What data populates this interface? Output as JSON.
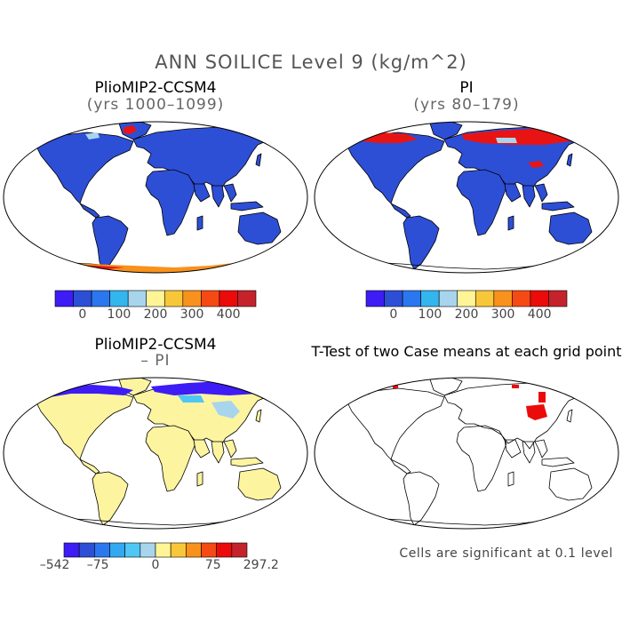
{
  "figure": {
    "title": "ANN SOILICE Level 9 (kg/m^2)"
  },
  "panels": [
    {
      "id": "p1",
      "title": "PlioMIP2-CCSM4",
      "subtitle": "(yrs 1000–1099)"
    },
    {
      "id": "p2",
      "title": "PI",
      "subtitle": "(yrs 80–179)"
    },
    {
      "id": "p3",
      "title": "PlioMIP2-CCSM4",
      "subtitle": "– PI"
    },
    {
      "id": "p4",
      "title": "T-Test of two Case means at each grid point",
      "subtitle": ""
    }
  ],
  "colorbars": {
    "absolute": {
      "colors": [
        "#3d1cf5",
        "#2d4fd6",
        "#2b77f0",
        "#33b5ee",
        "#a8d4ee",
        "#fff597",
        "#f8c739",
        "#f8921c",
        "#f54a14",
        "#ec0b0b",
        "#c4232c"
      ],
      "labels": [
        "0",
        "100",
        "200",
        "300",
        "400"
      ]
    },
    "difference": {
      "colors": [
        "#3d1cf5",
        "#2d4fd6",
        "#2b77f0",
        "#33a8f2",
        "#4fc7f5",
        "#a8d4ee",
        "#fff597",
        "#f8c739",
        "#f8921c",
        "#f54a14",
        "#ec0b0b",
        "#c4232c"
      ],
      "labels": [
        "–542",
        "–75",
        "0",
        "75",
        "297.2"
      ]
    }
  },
  "footnote": "Cells are significant at 0.1 level",
  "colors": {
    "ocean": "#ffffff",
    "land_abs": "#2d4fd6",
    "land_diff": "#fdf4a0",
    "high_ice": "#e81414",
    "light_blue": "#a8d4ee",
    "significant": "#ec0b0b",
    "outline": "#000000"
  }
}
